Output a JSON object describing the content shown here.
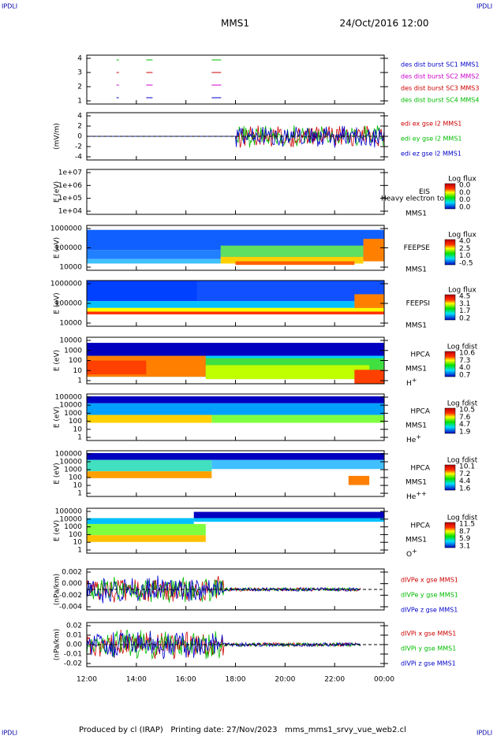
{
  "header": {
    "left": "IPDLI",
    "right": "IPDLI",
    "title": "MMS1",
    "date": "24/Oct/2016 12:00"
  },
  "footer": {
    "left": "IPDLI",
    "right": "IPDLI",
    "text": "Produced by cl (IRAP)   Printing date: 27/Nov/2023   mms_mms1_srvy_vue_web2.cl"
  },
  "xticks": [
    "12:00",
    "14:00",
    "16:00",
    "18:00",
    "20:00",
    "22:00",
    "00:00"
  ],
  "panels": [
    {
      "yticks": [
        "4",
        "3",
        "2",
        "1"
      ],
      "legend": [
        {
          "text": "des dist burst SC1 MMS1",
          "color": "#0000cc"
        },
        {
          "text": "des dist burst SC2 MMS2",
          "color": "#cc00cc"
        },
        {
          "text": "des dist burst SC3 MMS3",
          "color": "#cc0000"
        },
        {
          "text": "des dist burst SC4 MMS4",
          "color": "#00bb00"
        }
      ]
    },
    {
      "ylabel": "(mV/m)",
      "yticks": [
        "4",
        "2",
        "0",
        "-2",
        "-4"
      ],
      "legend": [
        {
          "text": "edi ex gse l2 MMS1",
          "color": "#cc0000"
        },
        {
          "text": "edi ey gse l2 MMS1",
          "color": "#00bb00"
        },
        {
          "text": "edi ez gse l2 MMS1",
          "color": "#0000cc"
        }
      ]
    },
    {
      "ylabel": "E (eV)",
      "yticks": [
        "1e+07",
        "1e+06",
        "1e+05",
        "1e+04"
      ],
      "instrument": "EIS",
      "note": "Heavy electron to",
      "sc": "MMS1",
      "cbar_title": "Log flux",
      "cbar": [
        "0.0",
        "0.0",
        "0.0",
        "0.0"
      ]
    },
    {
      "ylabel": "E (eV)",
      "yticks": [
        "1000000",
        "100000",
        "10000"
      ],
      "instrument": "FEEPSE",
      "sc": "MMS1",
      "cbar_title": "Log flux",
      "cbar": [
        "4.0",
        "2.5",
        "1.0",
        "-0.5"
      ]
    },
    {
      "ylabel": "E (eV)",
      "yticks": [
        "1000000",
        "100000",
        "10000"
      ],
      "instrument": "FEEPSI",
      "sc": "MMS1",
      "cbar_title": "Log flux",
      "cbar": [
        "4.5",
        "3.1",
        "1.7",
        "0.2"
      ]
    },
    {
      "ylabel": "E (eV)",
      "yticks": [
        "10000",
        "1000",
        "100",
        "10",
        "1"
      ],
      "instrument": "HPCA",
      "sc": "MMS1",
      "species": "H",
      "charge": "+",
      "cbar_title": "Log fdist",
      "cbar": [
        "10.6",
        "7.3",
        "4.0",
        "0.7"
      ]
    },
    {
      "ylabel": "E (eV)",
      "yticks": [
        "100000",
        "10000",
        "1000",
        "100",
        "10",
        "1"
      ],
      "instrument": "HPCA",
      "sc": "MMS1",
      "species": "He",
      "charge": "+",
      "cbar_title": "Log fdist",
      "cbar": [
        "10.5",
        "7.6",
        "4.7",
        "1.9"
      ]
    },
    {
      "ylabel": "E (eV)",
      "yticks": [
        "100000",
        "10000",
        "1000",
        "100",
        "10",
        "1"
      ],
      "instrument": "HPCA",
      "sc": "MMS1",
      "species": "He",
      "charge": "++",
      "cbar_title": "Log fdist",
      "cbar": [
        "10.1",
        "7.2",
        "4.4",
        "1.6"
      ]
    },
    {
      "ylabel": "E (eV)",
      "yticks": [
        "100000",
        "10000",
        "1000",
        "100",
        "10",
        "1"
      ],
      "instrument": "HPCA",
      "sc": "MMS1",
      "species": "O",
      "charge": "+",
      "cbar_title": "Log fdist",
      "cbar": [
        "11.5",
        "8.7",
        "5.9",
        "3.1"
      ]
    },
    {
      "ylabel": "(nPa/km)",
      "yticks": [
        "0.002",
        "0.000",
        "-0.002",
        "-0.004"
      ],
      "legend": [
        {
          "text": "dIVPe x gse MMS1",
          "color": "#cc0000"
        },
        {
          "text": "dIVPe y gse MMS1",
          "color": "#00bb00"
        },
        {
          "text": "dIVPe z gse MMS1",
          "color": "#0000cc"
        }
      ]
    },
    {
      "ylabel": "(nPa/km)",
      "yticks": [
        "0.02",
        "0.01",
        "0.00",
        "-0.01",
        "-0.02"
      ],
      "legend": [
        {
          "text": "dIVPi x gse MMS1",
          "color": "#cc0000"
        },
        {
          "text": "dIVPi y gse MMS1",
          "color": "#00bb00"
        },
        {
          "text": "dIVPi z gse MMS1",
          "color": "#0000cc"
        }
      ]
    }
  ]
}
